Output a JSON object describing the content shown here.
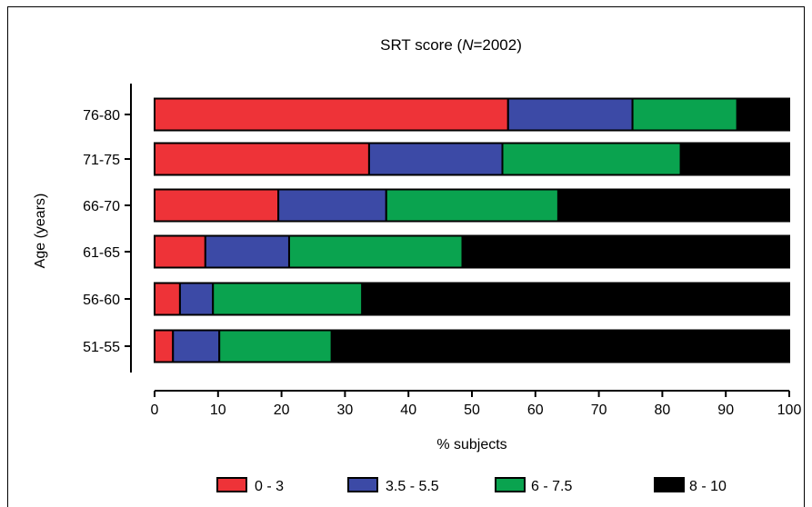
{
  "chart_data": {
    "type": "bar",
    "orientation": "horizontal",
    "stacked": true,
    "title_prefix": "SRT score (",
    "title_italic": "N",
    "title_suffix": "=2002)",
    "xlabel": "% subjects",
    "ylabel": "Age (years)",
    "xlim": [
      0,
      100
    ],
    "xticks": [
      "0",
      "10",
      "20",
      "30",
      "40",
      "50",
      "60",
      "70",
      "80",
      "90",
      "100"
    ],
    "categories": [
      "76-80",
      "71-75",
      "66-70",
      "61-65",
      "56-60",
      "51-55"
    ],
    "series": [
      {
        "name": "0 - 3",
        "color": "#ee3338",
        "values": [
          55.7,
          33.8,
          19.5,
          8.0,
          4.0,
          2.9
        ]
      },
      {
        "name": "3.5 - 5.5",
        "color": "#3c4aa6",
        "values": [
          19.6,
          21.0,
          17.0,
          13.2,
          5.2,
          7.3
        ]
      },
      {
        "name": "6 - 7.5",
        "color": "#0aa34f",
        "values": [
          16.5,
          28.1,
          27.1,
          27.3,
          23.5,
          17.7
        ]
      },
      {
        "name": "8 - 10",
        "color": "#000000",
        "values": [
          8.2,
          17.1,
          36.4,
          51.5,
          67.3,
          72.1
        ]
      }
    ],
    "grid": false,
    "legend_position": "bottom"
  }
}
